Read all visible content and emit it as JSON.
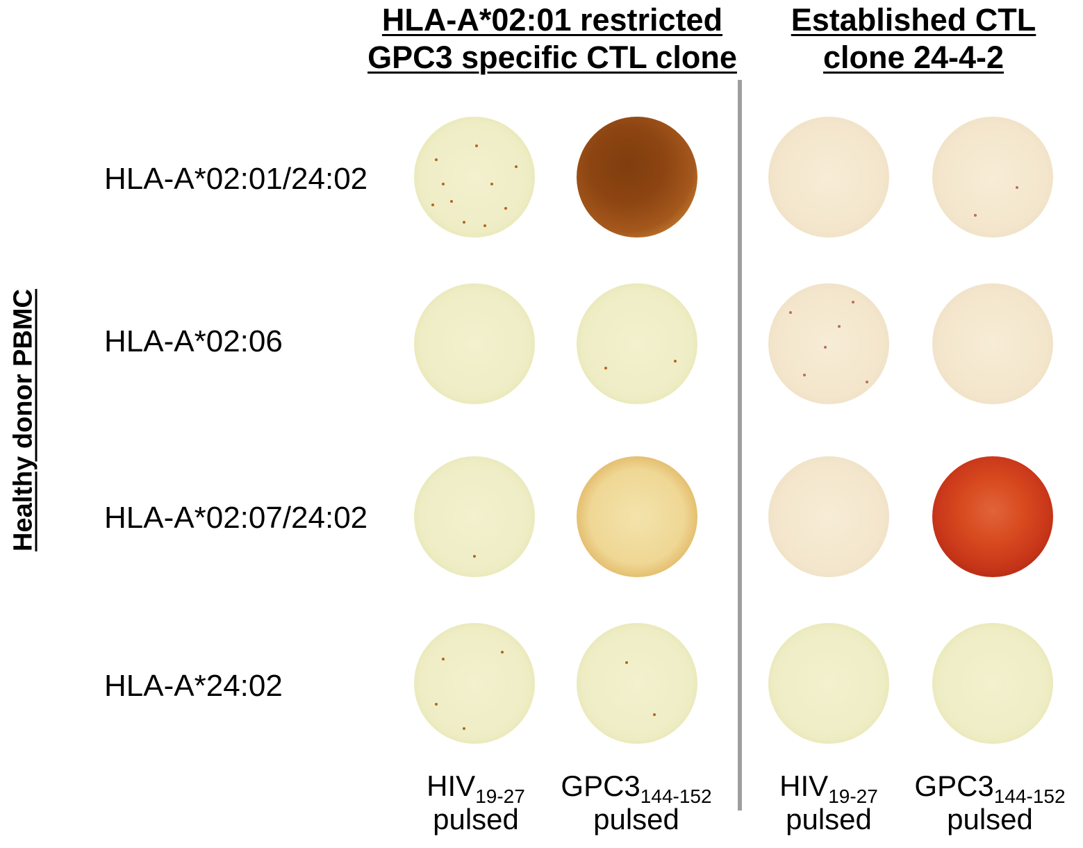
{
  "headers": {
    "left": {
      "line1": "HLA-A*02:01 restricted",
      "line2": "GPC3 specific CTL clone"
    },
    "right": {
      "line1": "Established CTL",
      "line2": "clone 24-4-2"
    }
  },
  "side_label": "Healthy donor PBMC",
  "rows": [
    {
      "label": "HLA-A*02:01/24:02"
    },
    {
      "label": "HLA-A*02:06"
    },
    {
      "label": "HLA-A*02:07/24:02"
    },
    {
      "label": "HLA-A*24:02"
    }
  ],
  "columns": [
    {
      "main": "HIV",
      "sub": "19-27",
      "line2": "pulsed"
    },
    {
      "main": "GPC3",
      "sub": "144-152",
      "line2": "pulsed"
    },
    {
      "main": "HIV",
      "sub": "19-27",
      "line2": "pulsed"
    },
    {
      "main": "GPC3",
      "sub": "144-152",
      "line2": "pulsed"
    }
  ],
  "wells": [
    [
      "pale-yellow spotted",
      "dark-brown",
      "pale-pink",
      "pale-pink"
    ],
    [
      "pale-yellow",
      "pale-yellow",
      "pale-pink spotted",
      "pale-pink"
    ],
    [
      "pale-yellow",
      "yellow-orange",
      "pale-pink",
      "red"
    ],
    [
      "pale-yellow spotted",
      "pale-yellow",
      "pale-yellow",
      "pale-yellow"
    ]
  ]
}
